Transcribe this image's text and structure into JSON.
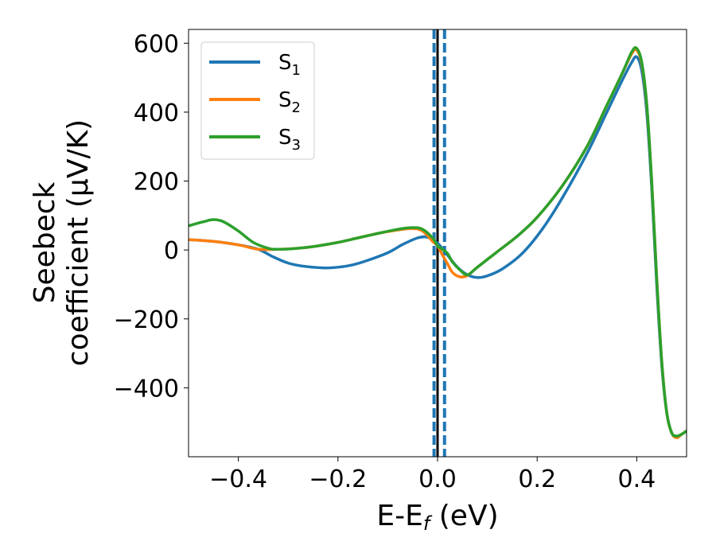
{
  "chart_data": {
    "type": "line",
    "xlabel": "E-E",
    "xlabel_sub": "f",
    "xlabel_unit": " (eV)",
    "ylabel_line1": "Seebeck",
    "ylabel_line2": "coefficient  (μV/K)",
    "xlim": [
      -0.5,
      0.5
    ],
    "ylim": [
      -600,
      640
    ],
    "x_ticks": [
      -0.4,
      -0.2,
      0.0,
      0.2,
      0.4
    ],
    "x_tick_labels": [
      "−0.4",
      "−0.2",
      "0.0",
      "0.2",
      "0.4"
    ],
    "y_ticks": [
      -400,
      -200,
      0,
      200,
      400,
      600
    ],
    "y_tick_labels": [
      "−400",
      "−200",
      "0",
      "200",
      "400",
      "600"
    ],
    "grid": false,
    "legend_position": "top-left",
    "vertical_lines": [
      {
        "x": 0.0,
        "style": "solid",
        "color": "#000000"
      },
      {
        "x": -0.007,
        "style": "dashed",
        "color": "#1f77b4"
      },
      {
        "x": 0.014,
        "style": "dashed",
        "color": "#1f77b4"
      }
    ],
    "series": [
      {
        "name": "S",
        "sub": "1",
        "color": "#1f77b4",
        "points": [
          [
            -0.5,
            30
          ],
          [
            -0.45,
            25
          ],
          [
            -0.4,
            15
          ],
          [
            -0.36,
            2
          ],
          [
            -0.33,
            -20
          ],
          [
            -0.3,
            -38
          ],
          [
            -0.27,
            -47
          ],
          [
            -0.23,
            -52
          ],
          [
            -0.2,
            -50
          ],
          [
            -0.17,
            -43
          ],
          [
            -0.14,
            -30
          ],
          [
            -0.1,
            -8
          ],
          [
            -0.07,
            16
          ],
          [
            -0.04,
            35
          ],
          [
            -0.02,
            37
          ],
          [
            0.0,
            20
          ],
          [
            0.02,
            -15
          ],
          [
            0.04,
            -50
          ],
          [
            0.06,
            -72
          ],
          [
            0.08,
            -80
          ],
          [
            0.1,
            -75
          ],
          [
            0.13,
            -55
          ],
          [
            0.17,
            -10
          ],
          [
            0.21,
            60
          ],
          [
            0.25,
            150
          ],
          [
            0.3,
            280
          ],
          [
            0.34,
            400
          ],
          [
            0.37,
            490
          ],
          [
            0.39,
            545
          ],
          [
            0.4,
            560
          ],
          [
            0.41,
            520
          ],
          [
            0.42,
            400
          ],
          [
            0.43,
            180
          ],
          [
            0.44,
            -100
          ],
          [
            0.45,
            -330
          ],
          [
            0.46,
            -470
          ],
          [
            0.47,
            -530
          ],
          [
            0.48,
            -540
          ],
          [
            0.49,
            -535
          ],
          [
            0.5,
            -525
          ]
        ]
      },
      {
        "name": "S",
        "sub": "2",
        "color": "#ff7f0e",
        "points": [
          [
            -0.5,
            30
          ],
          [
            -0.45,
            25
          ],
          [
            -0.4,
            15
          ],
          [
            -0.36,
            2
          ],
          [
            -0.32,
            2
          ],
          [
            -0.28,
            5
          ],
          [
            -0.24,
            12
          ],
          [
            -0.2,
            22
          ],
          [
            -0.16,
            35
          ],
          [
            -0.12,
            48
          ],
          [
            -0.08,
            58
          ],
          [
            -0.05,
            62
          ],
          [
            -0.03,
            55
          ],
          [
            -0.01,
            25
          ],
          [
            0.0,
            12
          ],
          [
            0.01,
            -15
          ],
          [
            0.02,
            -40
          ],
          [
            0.03,
            -65
          ],
          [
            0.045,
            -78
          ],
          [
            0.06,
            -74
          ],
          [
            0.08,
            -50
          ],
          [
            0.12,
            -5
          ],
          [
            0.16,
            40
          ],
          [
            0.2,
            95
          ],
          [
            0.25,
            185
          ],
          [
            0.3,
            300
          ],
          [
            0.34,
            420
          ],
          [
            0.37,
            510
          ],
          [
            0.39,
            570
          ],
          [
            0.4,
            580
          ],
          [
            0.41,
            540
          ],
          [
            0.42,
            420
          ],
          [
            0.43,
            200
          ],
          [
            0.44,
            -80
          ],
          [
            0.45,
            -320
          ],
          [
            0.46,
            -470
          ],
          [
            0.47,
            -530
          ],
          [
            0.48,
            -545
          ],
          [
            0.49,
            -535
          ],
          [
            0.5,
            -525
          ]
        ]
      },
      {
        "name": "S",
        "sub": "3",
        "color": "#2ca02c",
        "points": [
          [
            -0.5,
            70
          ],
          [
            -0.47,
            82
          ],
          [
            -0.45,
            88
          ],
          [
            -0.43,
            82
          ],
          [
            -0.4,
            55
          ],
          [
            -0.37,
            22
          ],
          [
            -0.34,
            5
          ],
          [
            -0.32,
            2
          ],
          [
            -0.28,
            5
          ],
          [
            -0.24,
            12
          ],
          [
            -0.2,
            22
          ],
          [
            -0.16,
            35
          ],
          [
            -0.12,
            48
          ],
          [
            -0.08,
            60
          ],
          [
            -0.05,
            65
          ],
          [
            -0.03,
            60
          ],
          [
            -0.01,
            35
          ],
          [
            0.0,
            12
          ],
          [
            0.01,
            2
          ],
          [
            0.02,
            -10
          ],
          [
            0.03,
            -35
          ],
          [
            0.045,
            -58
          ],
          [
            0.06,
            -72
          ],
          [
            0.08,
            -50
          ],
          [
            0.12,
            -5
          ],
          [
            0.16,
            40
          ],
          [
            0.2,
            95
          ],
          [
            0.25,
            185
          ],
          [
            0.3,
            300
          ],
          [
            0.34,
            420
          ],
          [
            0.37,
            510
          ],
          [
            0.39,
            575
          ],
          [
            0.4,
            585
          ],
          [
            0.41,
            545
          ],
          [
            0.42,
            425
          ],
          [
            0.43,
            200
          ],
          [
            0.44,
            -80
          ],
          [
            0.45,
            -320
          ],
          [
            0.46,
            -470
          ],
          [
            0.47,
            -530
          ],
          [
            0.48,
            -540
          ],
          [
            0.49,
            -535
          ],
          [
            0.5,
            -525
          ]
        ]
      }
    ]
  }
}
